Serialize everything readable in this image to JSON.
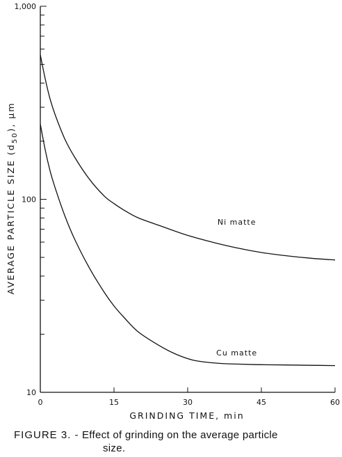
{
  "caption": {
    "figure_number": "FIGURE 3. -",
    "line1": "Effect of grinding on the average particle",
    "line2": "size."
  },
  "chart_data": {
    "type": "line",
    "title": "",
    "xlabel": "GRINDING TIME, min",
    "ylabel": "AVERAGE PARTICLE SIZE (d50), μm",
    "ylabel_parts": {
      "main": "AVERAGE PARTICLE SIZE (d",
      "subscript": "50",
      "tail": "), μm"
    },
    "xlim": [
      0,
      60
    ],
    "ylim": [
      10,
      1000
    ],
    "yscale": "log",
    "grid": false,
    "x_ticks": [
      0,
      15,
      30,
      45,
      60
    ],
    "x_tick_labels": [
      "0",
      "15",
      "30",
      "45",
      "60"
    ],
    "y_major_ticks": [
      10,
      100,
      1000
    ],
    "y_tick_labels": [
      "10",
      "100",
      "1,000"
    ],
    "legend": "none",
    "series": [
      {
        "name": "Ni matte",
        "label_at": [
          40,
          74
        ],
        "x": [
          0,
          1,
          2,
          3,
          5,
          7,
          10,
          13,
          15,
          17,
          20,
          25,
          30,
          35,
          40,
          45,
          50,
          55,
          60
        ],
        "y": [
          560,
          420,
          330,
          275,
          205,
          165,
          127,
          104,
          95,
          88,
          80,
          72,
          65,
          60,
          56,
          53,
          51,
          49.5,
          48.5
        ]
      },
      {
        "name": "Cu matte",
        "label_at": [
          40,
          15.5
        ],
        "x": [
          0,
          1,
          2,
          3,
          5,
          7,
          10,
          13,
          15,
          17,
          20,
          25,
          28,
          31,
          34,
          37,
          40,
          45,
          50,
          55,
          60
        ],
        "y": [
          245,
          180,
          140,
          115,
          82,
          62,
          44,
          33,
          28,
          24.5,
          20.5,
          17,
          15.6,
          14.7,
          14.3,
          14.1,
          14,
          13.9,
          13.85,
          13.8,
          13.75
        ]
      }
    ]
  }
}
